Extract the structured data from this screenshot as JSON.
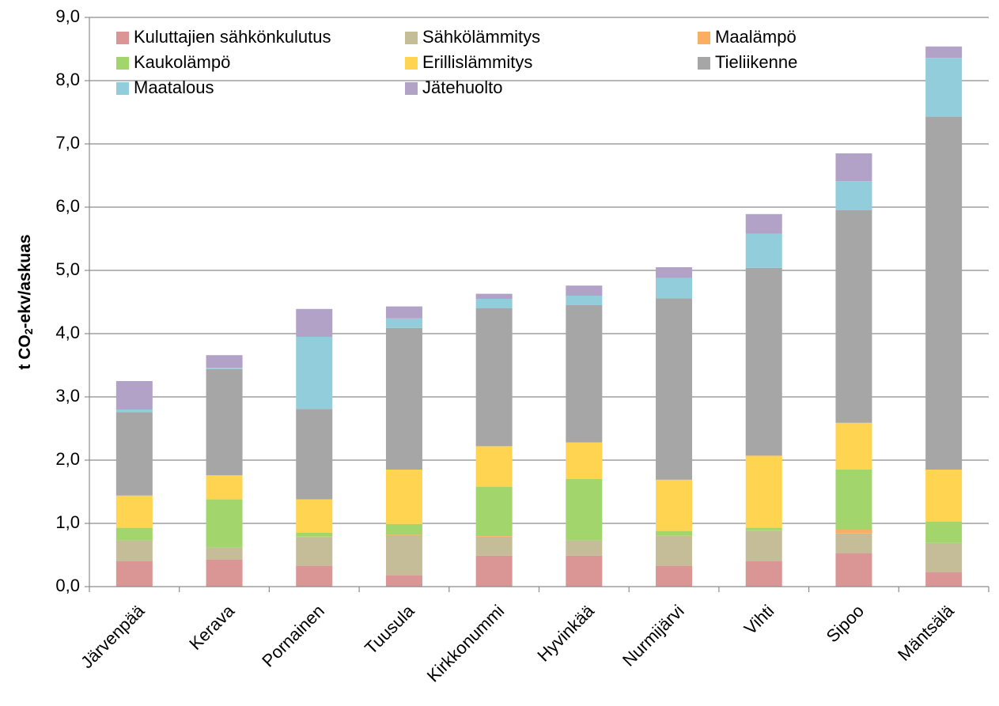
{
  "chart_data": {
    "type": "stacked_bar",
    "ylabel": {
      "text": "t CO",
      "sub": "2",
      "rest": "-ekv/askuas"
    },
    "categories": [
      "Järvenpää",
      "Kerava",
      "Pornainen",
      "Tuusula",
      "Kirkkonummi",
      "Hyvinkää",
      "Nurmijärvi",
      "Vihti",
      "Sipoo",
      "Mäntsälä"
    ],
    "series": [
      {
        "name": "Kuluttajien sähkönkulutus",
        "color": "#d99694",
        "values": [
          0.4,
          0.43,
          0.33,
          0.18,
          0.49,
          0.49,
          0.33,
          0.4,
          0.53,
          0.23
        ]
      },
      {
        "name": "Sähkölämmitys",
        "color": "#c4bd97",
        "values": [
          0.33,
          0.19,
          0.45,
          0.62,
          0.3,
          0.24,
          0.47,
          0.48,
          0.31,
          0.46
        ]
      },
      {
        "name": "Maalämpö",
        "color": "#f9ae64",
        "values": [
          0.0,
          0.0,
          0.01,
          0.02,
          0.01,
          0.0,
          0.01,
          0.01,
          0.06,
          0.0
        ]
      },
      {
        "name": "Kaukolämpö",
        "color": "#a2d66c",
        "values": [
          0.2,
          0.76,
          0.06,
          0.17,
          0.78,
          0.97,
          0.07,
          0.04,
          0.95,
          0.34
        ]
      },
      {
        "name": "Erillislämmitys",
        "color": "#ffd451",
        "values": [
          0.51,
          0.38,
          0.53,
          0.86,
          0.64,
          0.58,
          0.81,
          1.14,
          0.74,
          0.82
        ]
      },
      {
        "name": "Tieliikenne",
        "color": "#a6a6a6",
        "values": [
          1.32,
          1.68,
          1.43,
          2.24,
          2.18,
          2.17,
          2.87,
          2.97,
          3.36,
          5.58
        ]
      },
      {
        "name": "Maatalous",
        "color": "#92cddc",
        "values": [
          0.04,
          0.02,
          1.14,
          0.15,
          0.15,
          0.15,
          0.32,
          0.54,
          0.46,
          0.93
        ]
      },
      {
        "name": "Jätehuolto",
        "color": "#b3a2c7",
        "values": [
          0.45,
          0.2,
          0.44,
          0.19,
          0.08,
          0.16,
          0.17,
          0.31,
          0.44,
          0.18
        ]
      }
    ],
    "ylim": [
      0,
      9
    ],
    "yticks": [
      {
        "value": 0,
        "label": "0,0"
      },
      {
        "value": 1,
        "label": "1,0"
      },
      {
        "value": 2,
        "label": "2,0"
      },
      {
        "value": 3,
        "label": "3,0"
      },
      {
        "value": 4,
        "label": "4,0"
      },
      {
        "value": 5,
        "label": "5,0"
      },
      {
        "value": 6,
        "label": "6,0"
      },
      {
        "value": 7,
        "label": "7,0"
      },
      {
        "value": 8,
        "label": "8,0"
      },
      {
        "value": 9,
        "label": "9,0"
      }
    ],
    "grid": true,
    "legend": "upper left"
  }
}
